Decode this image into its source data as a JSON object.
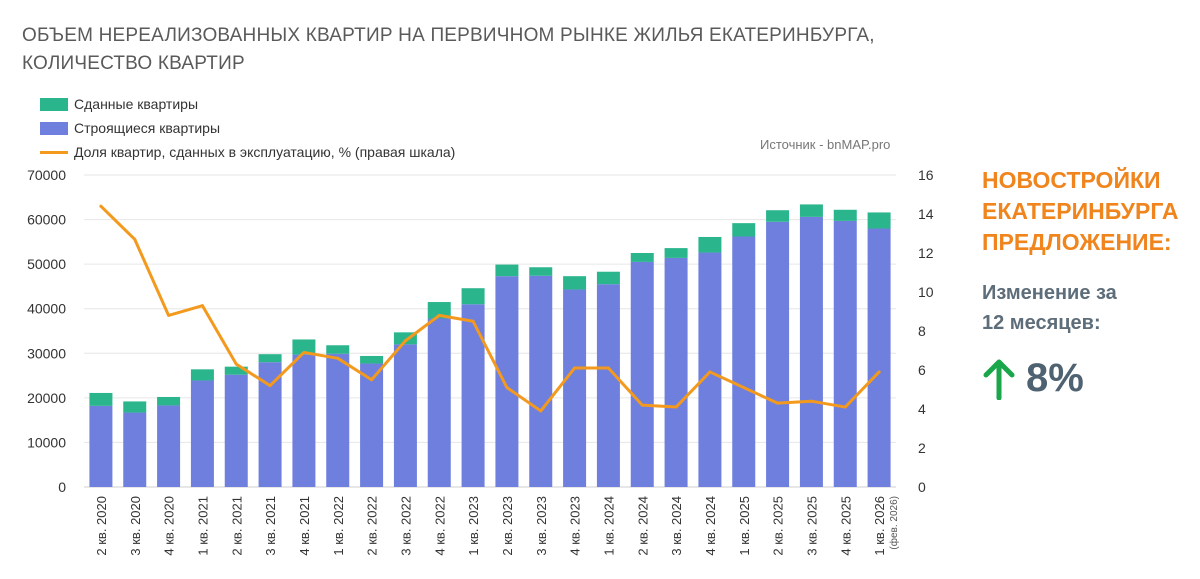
{
  "title_lines": [
    "ОБЪЕМ НЕРЕАЛИЗОВАННЫХ КВАРТИР НА ПЕРВИЧНОМ РЫНКЕ ЖИЛЬЯ ЕКАТЕРИНБУРГА,",
    "КОЛИЧЕСТВО КВАРТИР"
  ],
  "legend": {
    "completed": "Сданные квартиры",
    "under_construction": "Строящиеся квартиры",
    "share": "Доля квартир, сданных в эксплуатацию, % (правая шкала)"
  },
  "source": "Источник - bnMAP.pro",
  "colors": {
    "completed": "#2bb58d",
    "under_construction": "#6f7fde",
    "share_line": "#f39a1e",
    "accent_orange": "#f0841d",
    "arrow_green": "#1aa64a"
  },
  "chart_data": {
    "type": "bar",
    "stacked": true,
    "categories": [
      "2 кв. 2020",
      "3 кв. 2020",
      "4 кв. 2020",
      "1 кв. 2021",
      "2 кв. 2021",
      "3 кв. 2021",
      "4 кв. 2021",
      "1 кв. 2022",
      "2 кв. 2022",
      "3 кв. 2022",
      "4 кв. 2022",
      "1 кв. 2023",
      "2 кв. 2023",
      "3 кв. 2023",
      "4 кв. 2023",
      "1 кв. 2024",
      "2 кв. 2024",
      "3 кв. 2024",
      "4 кв. 2024",
      "1 кв. 2025",
      "2 кв. 2025",
      "3 кв. 2025",
      "4 кв. 2025",
      "1 кв. 2026"
    ],
    "category_notes": {
      "23": "(фев. 2026)"
    },
    "series": [
      {
        "name": "Строящиеся квартиры",
        "values": [
          18200,
          16700,
          18300,
          23900,
          25200,
          28000,
          29700,
          29900,
          27700,
          32000,
          37800,
          41000,
          47300,
          47400,
          44300,
          45500,
          50500,
          51400,
          52600,
          56200,
          59500,
          60600,
          59700,
          58000
        ]
      },
      {
        "name": "Сданные квартиры",
        "values": [
          2900,
          2500,
          1900,
          2500,
          1800,
          1800,
          3400,
          1900,
          1700,
          2700,
          3700,
          3600,
          2600,
          1900,
          3000,
          2800,
          2000,
          2200,
          3500,
          3000,
          2600,
          2800,
          2500,
          3600
        ]
      },
      {
        "name": "Доля квартир, сданных в эксплуатацию, % (правая шкала)",
        "axis": "right",
        "type": "line",
        "values": [
          14.4,
          12.7,
          8.8,
          9.3,
          6.3,
          5.2,
          6.9,
          6.6,
          5.5,
          7.5,
          8.8,
          8.5,
          5.1,
          3.9,
          6.1,
          6.1,
          4.2,
          4.1,
          5.9,
          5.1,
          4.3,
          4.4,
          4.1,
          5.9
        ]
      }
    ],
    "ylim": [
      0,
      70000
    ],
    "yticks": [
      "0",
      "10000",
      "20000",
      "30000",
      "40000",
      "50000",
      "60000",
      "70000"
    ],
    "y2lim": [
      0,
      16
    ],
    "y2ticks": [
      "0",
      "2",
      "4",
      "6",
      "8",
      "10",
      "12",
      "14",
      "16"
    ],
    "grid": true
  },
  "panel": {
    "heading": [
      "НОВОСТРОЙКИ",
      "ЕКАТЕРИНБУРГА",
      "ПРЕДЛОЖЕНИЕ:"
    ],
    "change_label": [
      "Изменение за",
      "12 месяцев:"
    ],
    "change_value": "8%"
  }
}
